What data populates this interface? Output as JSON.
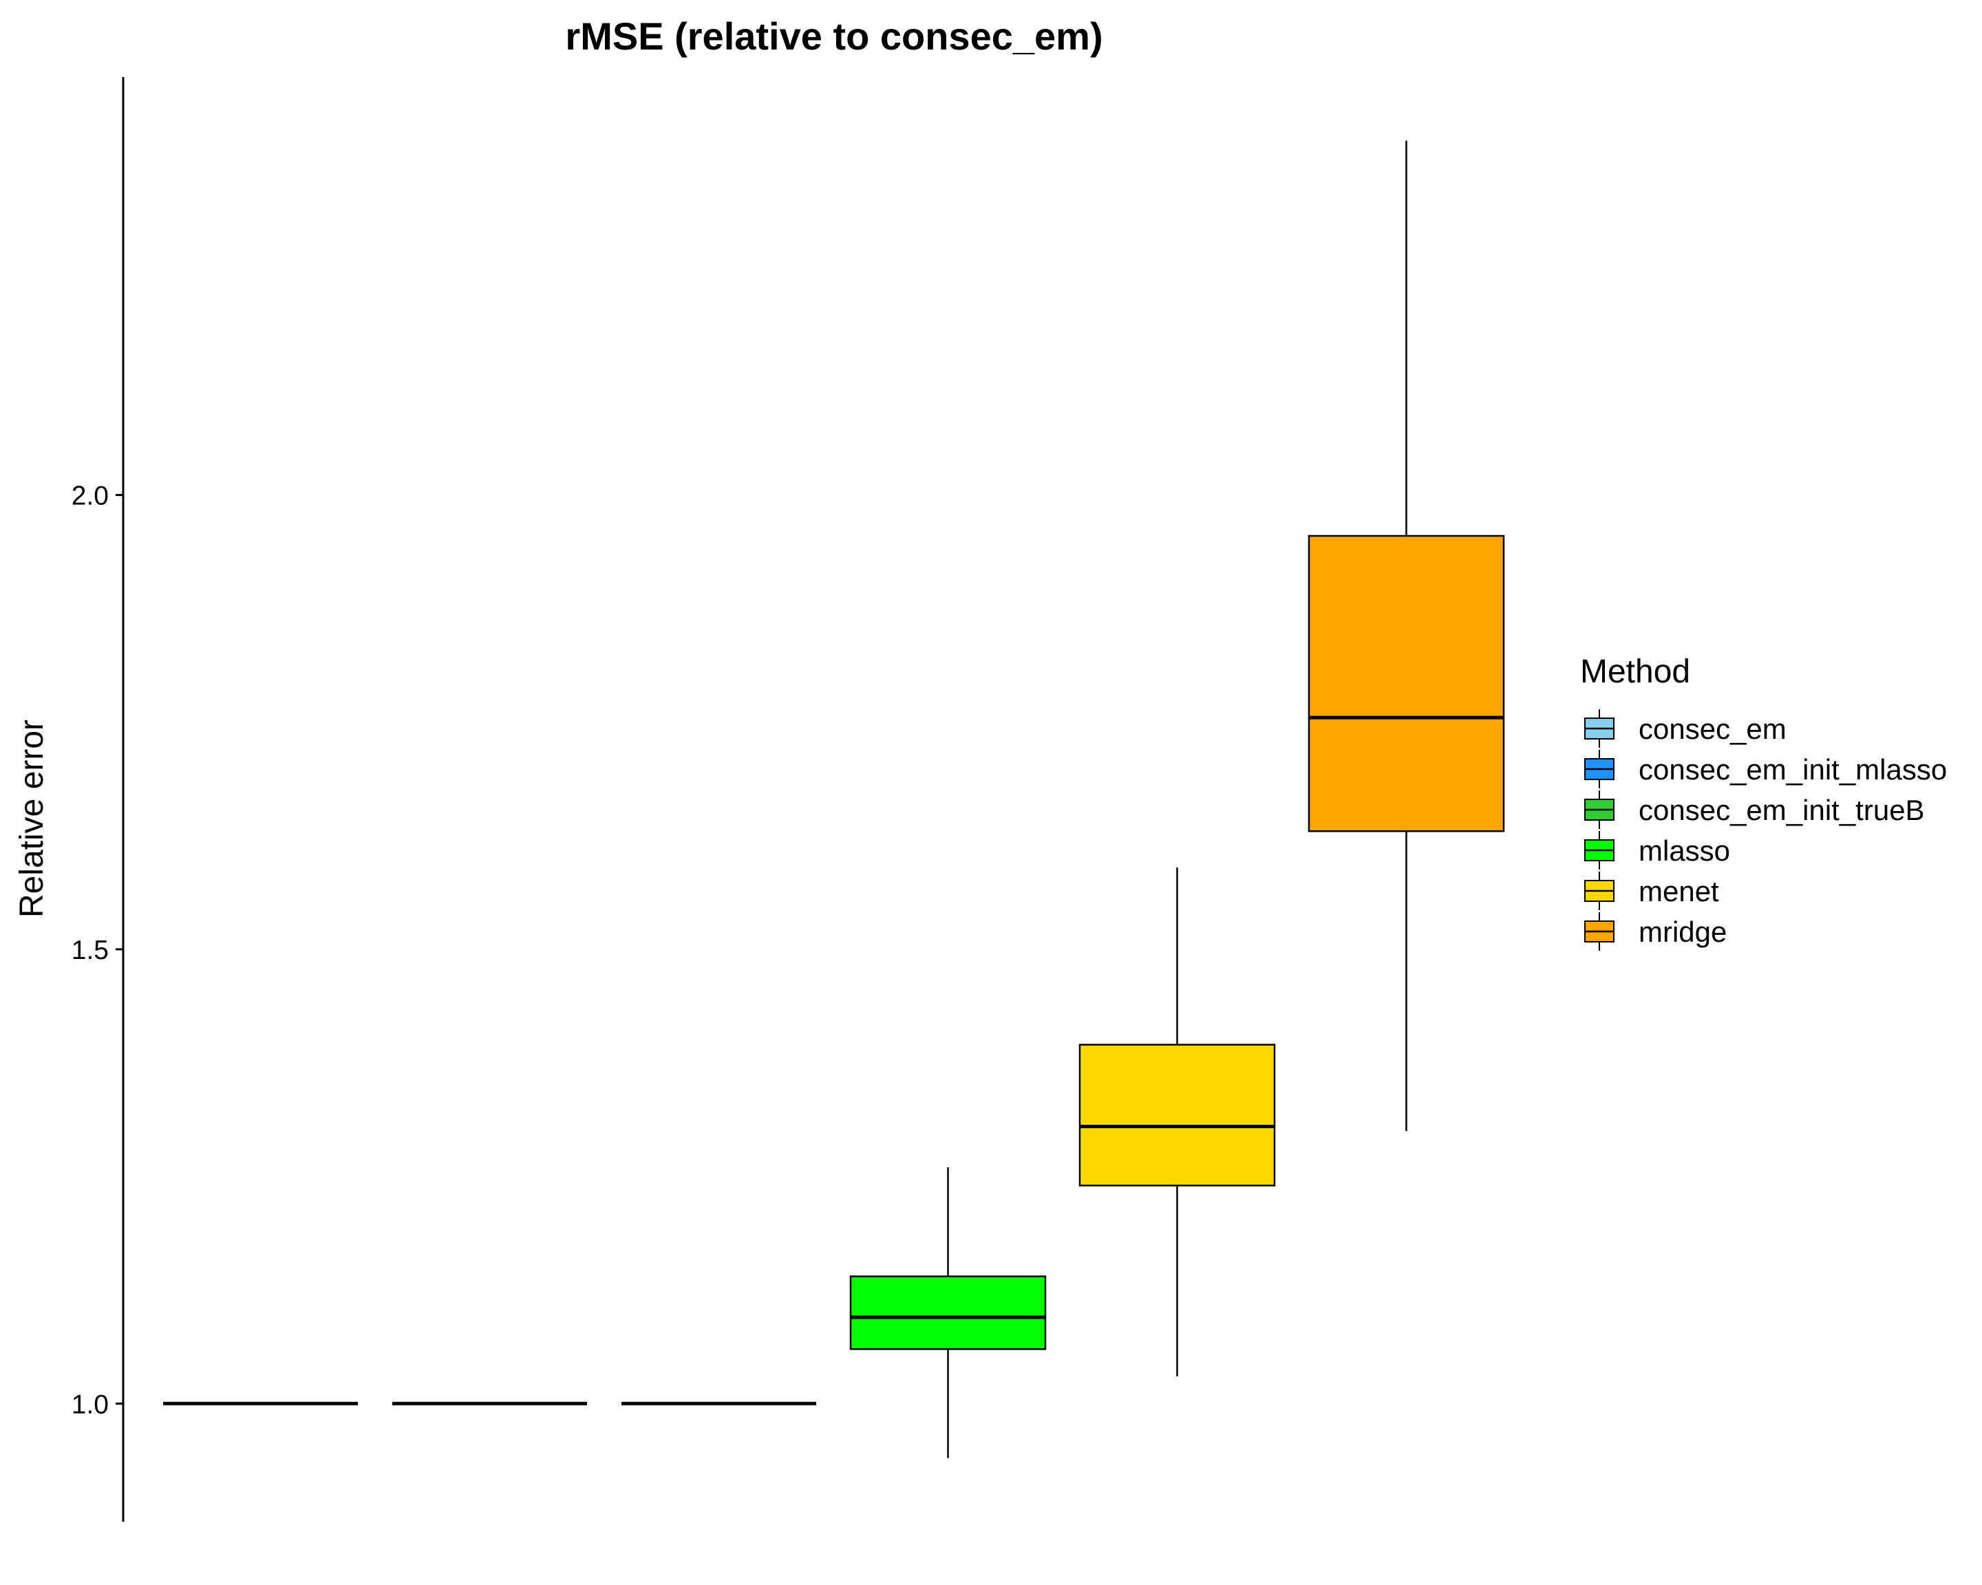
{
  "chart_data": {
    "type": "boxplot",
    "title": "rMSE (relative to consec_em)",
    "xlabel": "",
    "ylabel": "Relative error",
    "ylim": [
      0.87,
      2.46
    ],
    "yticks": [
      1.0,
      1.5,
      2.0
    ],
    "ytick_labels": [
      "1.0",
      "1.5",
      "2.0"
    ],
    "grid": false,
    "legend": {
      "title": "Method",
      "placement": "right"
    },
    "series": [
      {
        "name": "consec_em",
        "color": "#87CEEB",
        "min": 1.0,
        "q1": 1.0,
        "median": 1.0,
        "q3": 1.0,
        "max": 1.0
      },
      {
        "name": "consec_em_init_mlasso",
        "color": "#1E90FF",
        "min": 1.0,
        "q1": 1.0,
        "median": 1.0,
        "q3": 1.0,
        "max": 1.0
      },
      {
        "name": "consec_em_init_trueB",
        "color": "#32CD32",
        "min": 1.0,
        "q1": 1.0,
        "median": 1.0,
        "q3": 1.0,
        "max": 1.0
      },
      {
        "name": "mlasso",
        "color": "#00FF00",
        "min": 0.94,
        "q1": 1.06,
        "median": 1.095,
        "q3": 1.14,
        "max": 1.26
      },
      {
        "name": "menet",
        "color": "#FFD700",
        "min": 1.03,
        "q1": 1.24,
        "median": 1.305,
        "q3": 1.395,
        "max": 1.59
      },
      {
        "name": "mridge",
        "color": "#FFA500",
        "min": 1.3,
        "q1": 1.63,
        "median": 1.755,
        "q3": 1.955,
        "max": 2.39
      }
    ]
  }
}
